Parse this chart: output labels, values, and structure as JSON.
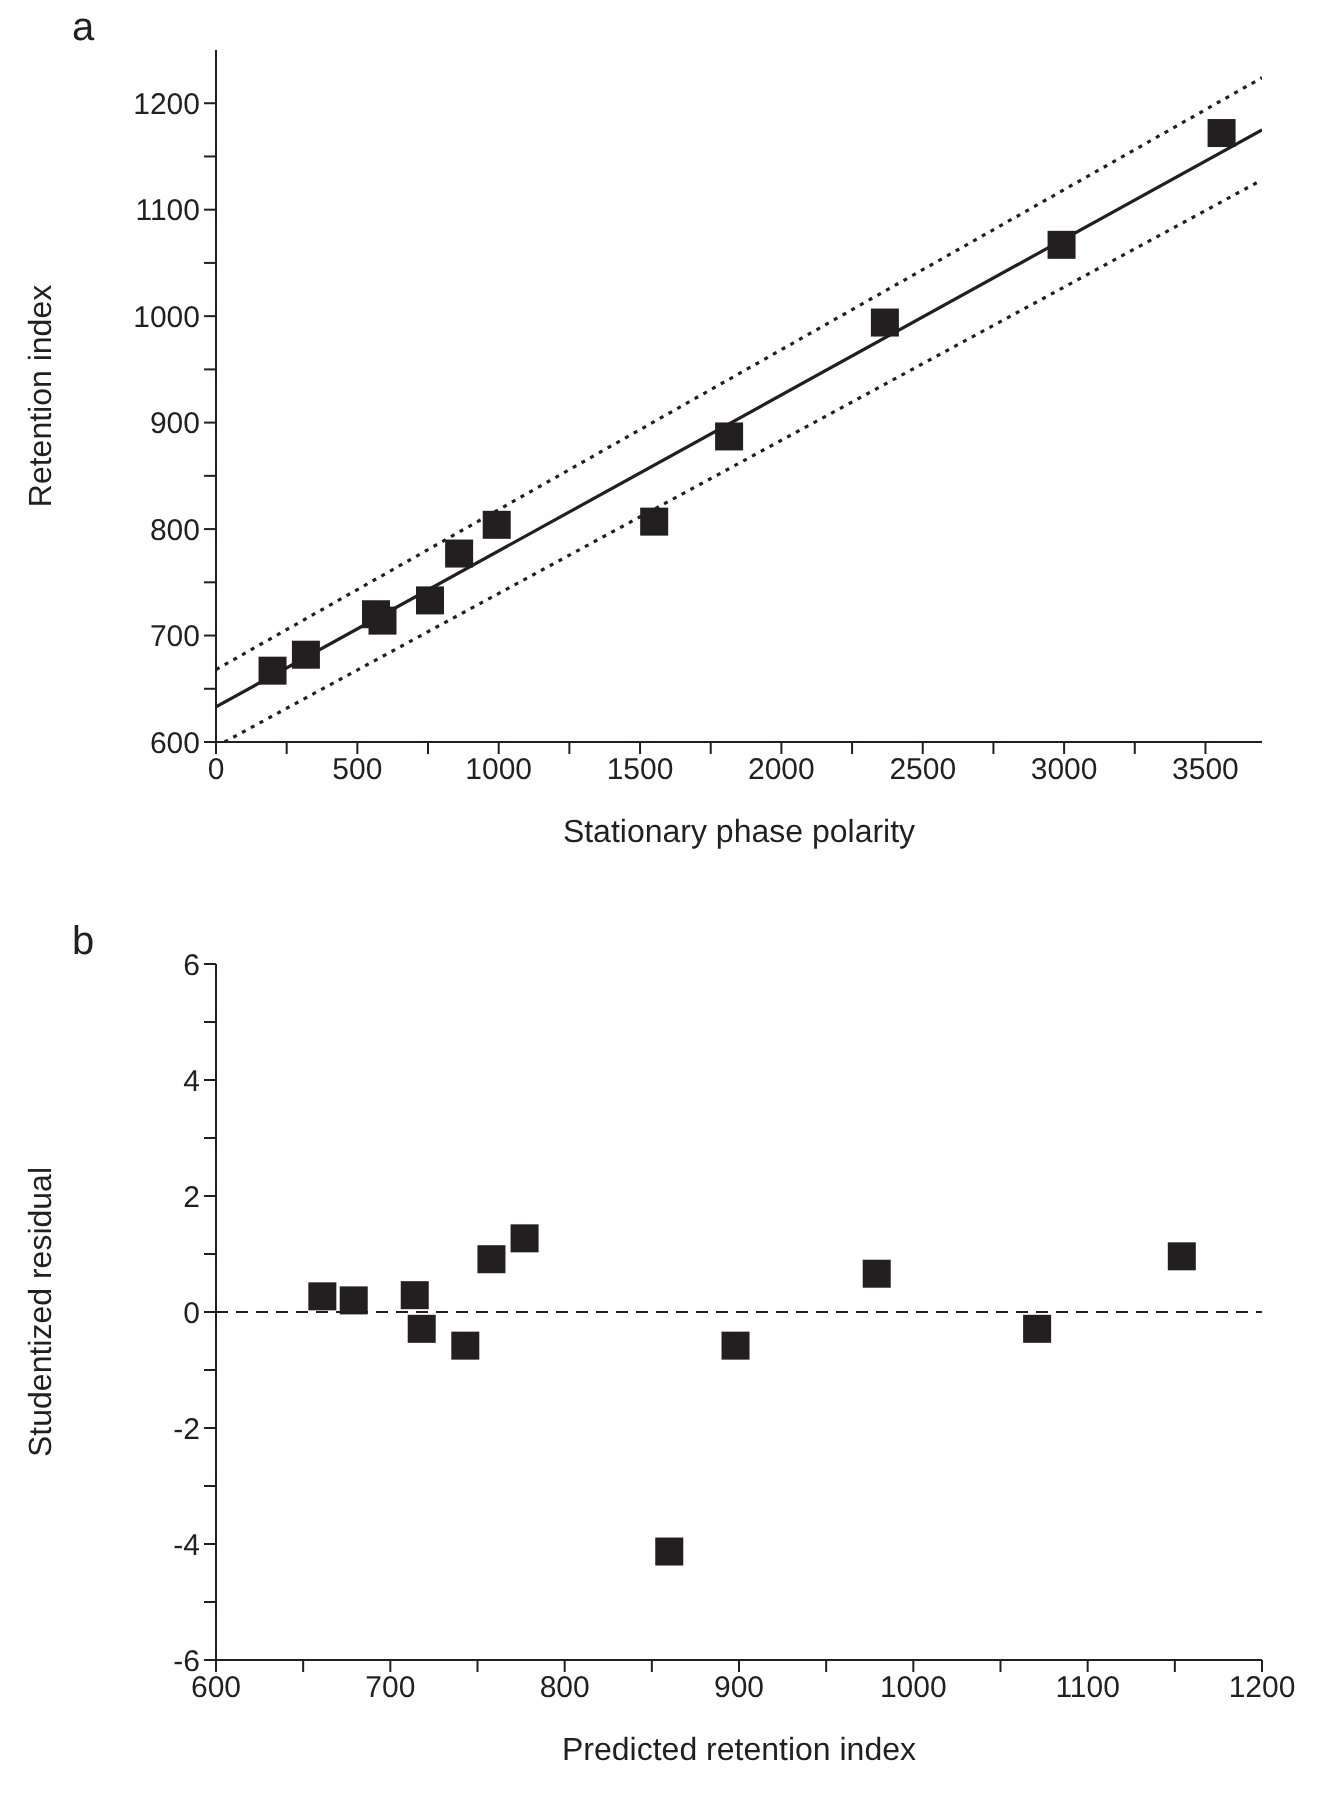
{
  "chart_data": [
    {
      "type": "scatter",
      "xlabel": "Stationary phase polarity",
      "ylabel": "Retention index",
      "annotations": [
        "a"
      ],
      "marker": "square",
      "legend": false,
      "grid": false,
      "xlim": [
        0,
        3700
      ],
      "xticks": [
        0,
        {
          "value": 250,
          "label": null
        },
        500,
        {
          "value": 750,
          "label": null
        },
        1000,
        {
          "value": 1250,
          "label": null
        },
        1500,
        {
          "value": 1750,
          "label": null
        },
        2000,
        {
          "value": 2250,
          "label": null
        },
        2500,
        {
          "value": 2750,
          "label": null
        },
        3000,
        {
          "value": 3250,
          "label": null
        },
        3500
      ],
      "ylim": [
        600,
        1250
      ],
      "yticks": [
        600,
        {
          "value": 650,
          "label": null
        },
        700,
        {
          "value": 750,
          "label": null
        },
        800,
        {
          "value": 850,
          "label": null
        },
        900,
        {
          "value": 950,
          "label": null
        },
        1000,
        {
          "value": 1050,
          "label": null
        },
        1100,
        {
          "value": 1150,
          "label": null
        },
        1200
      ],
      "series": [
        {
          "color": "#231f20",
          "x": [
            200,
            318,
            566,
            589,
            757,
            860,
            993,
            1550,
            1815,
            2366,
            2991,
            3557
          ],
          "values": [
            667,
            682,
            720,
            714,
            733,
            777,
            804,
            807,
            887,
            994,
            1067,
            1172
          ]
        },
        {
          "type": "line",
          "color": "#231f20",
          "line_style": "solid",
          "marker": "none",
          "x": [
            0,
            3700
          ],
          "values": [
            633,
            1175
          ]
        },
        {
          "type": "line",
          "color": "#231f20",
          "line_style": "dotted",
          "marker": "none",
          "x": [
            0,
            3700
          ],
          "values": [
            668,
            1224
          ]
        },
        {
          "type": "line",
          "color": "#231f20",
          "line_style": "dotted",
          "marker": "none",
          "x": [
            30,
            3700
          ],
          "values": [
            600,
            1128
          ]
        }
      ]
    },
    {
      "type": "scatter",
      "xlabel": "Predicted retention index",
      "ylabel": "Studentized residual",
      "annotations": [
        "b"
      ],
      "marker": "square",
      "legend": false,
      "grid": false,
      "xlim": [
        600,
        1200
      ],
      "xticks": [
        600,
        {
          "value": 650,
          "label": null
        },
        700,
        {
          "value": 750,
          "label": null
        },
        800,
        {
          "value": 850,
          "label": null
        },
        900,
        {
          "value": 950,
          "label": null
        },
        1000,
        {
          "value": 1050,
          "label": null
        },
        1100,
        {
          "value": 1150,
          "label": null
        },
        1200
      ],
      "ylim": [
        -6,
        6
      ],
      "yticks": [
        -6,
        {
          "value": -5,
          "label": null
        },
        -4,
        {
          "value": -3,
          "label": null
        },
        -2,
        {
          "value": -1,
          "label": null
        },
        0,
        {
          "value": 1,
          "label": null
        },
        2,
        {
          "value": 3,
          "label": null
        },
        4,
        {
          "value": 5,
          "label": null
        },
        6
      ],
      "ref_lines": [
        {
          "axis": "y",
          "value": 0,
          "color": "#231f20",
          "line_style": "dashed"
        }
      ],
      "series": [
        {
          "color": "#231f20",
          "x": [
            661,
            679,
            714,
            718,
            743,
            758,
            777,
            860,
            898,
            979,
            1071,
            1154
          ],
          "values": [
            0.27,
            0.2,
            0.29,
            -0.29,
            -0.58,
            0.91,
            1.27,
            -4.13,
            -0.58,
            0.66,
            -0.29,
            0.96
          ]
        }
      ]
    }
  ]
}
